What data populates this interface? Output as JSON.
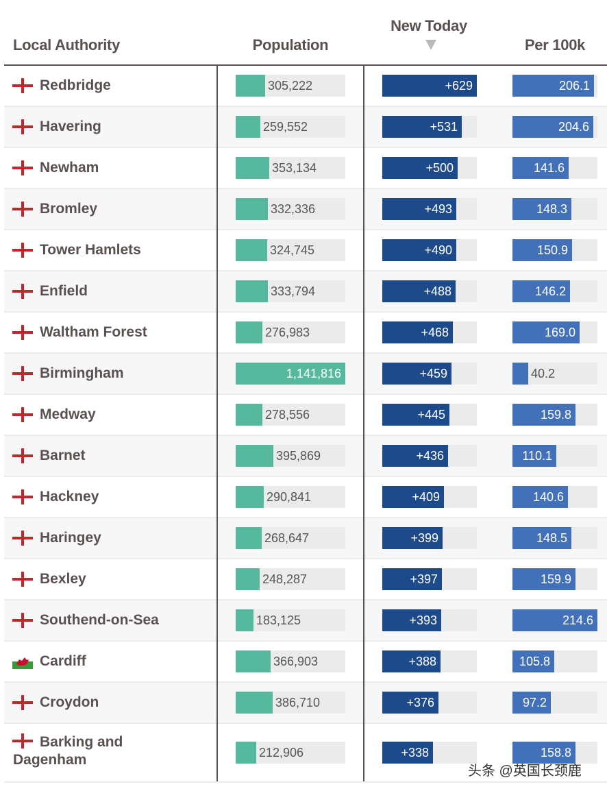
{
  "headers": {
    "name": "Local Authority",
    "population": "Population",
    "new_today": "New Today",
    "per_100k": "Per 100k"
  },
  "sort": {
    "column": "New Today",
    "direction": "descending"
  },
  "colors": {
    "population": "#56b89d",
    "new_today": "#1c4a8a",
    "per_100k": "#4371b9",
    "track": "#ebebeb",
    "england_flag": "#c0272d"
  },
  "watermark": "头条 @英国长颈鹿",
  "chart_data": {
    "type": "table",
    "columns": [
      "Local Authority",
      "Population",
      "New Today",
      "Per 100k"
    ],
    "rows": [
      {
        "flag": "england-flag",
        "name": "Redbridge",
        "population": "305,222",
        "new_today": "+629",
        "per_100k": "206.1"
      },
      {
        "flag": "england-flag",
        "name": "Havering",
        "population": "259,552",
        "new_today": "+531",
        "per_100k": "204.6"
      },
      {
        "flag": "england-flag",
        "name": "Newham",
        "population": "353,134",
        "new_today": "+500",
        "per_100k": "141.6"
      },
      {
        "flag": "england-flag",
        "name": "Bromley",
        "population": "332,336",
        "new_today": "+493",
        "per_100k": "148.3"
      },
      {
        "flag": "england-flag",
        "name": "Tower Hamlets",
        "population": "324,745",
        "new_today": "+490",
        "per_100k": "150.9"
      },
      {
        "flag": "england-flag",
        "name": "Enfield",
        "population": "333,794",
        "new_today": "+488",
        "per_100k": "146.2"
      },
      {
        "flag": "england-flag",
        "name": "Waltham Forest",
        "population": "276,983",
        "new_today": "+468",
        "per_100k": "169.0"
      },
      {
        "flag": "england-flag",
        "name": "Birmingham",
        "population": "1,141,816",
        "new_today": "+459",
        "per_100k": "40.2"
      },
      {
        "flag": "england-flag",
        "name": "Medway",
        "population": "278,556",
        "new_today": "+445",
        "per_100k": "159.8"
      },
      {
        "flag": "england-flag",
        "name": "Barnet",
        "population": "395,869",
        "new_today": "+436",
        "per_100k": "110.1"
      },
      {
        "flag": "england-flag",
        "name": "Hackney",
        "population": "290,841",
        "new_today": "+409",
        "per_100k": "140.6"
      },
      {
        "flag": "england-flag",
        "name": "Haringey",
        "population": "268,647",
        "new_today": "+399",
        "per_100k": "148.5"
      },
      {
        "flag": "england-flag",
        "name": "Bexley",
        "population": "248,287",
        "new_today": "+397",
        "per_100k": "159.9"
      },
      {
        "flag": "england-flag",
        "name": "Southend-on-Sea",
        "population": "183,125",
        "new_today": "+393",
        "per_100k": "214.6"
      },
      {
        "flag": "wales-flag",
        "name": "Cardiff",
        "population": "366,903",
        "new_today": "+388",
        "per_100k": "105.8"
      },
      {
        "flag": "england-flag",
        "name": "Croydon",
        "population": "386,710",
        "new_today": "+376",
        "per_100k": "97.2"
      },
      {
        "flag": "england-flag",
        "name": "Barking and Dagenham",
        "population": "212,906",
        "new_today": "+338",
        "per_100k": "158.8"
      }
    ]
  }
}
